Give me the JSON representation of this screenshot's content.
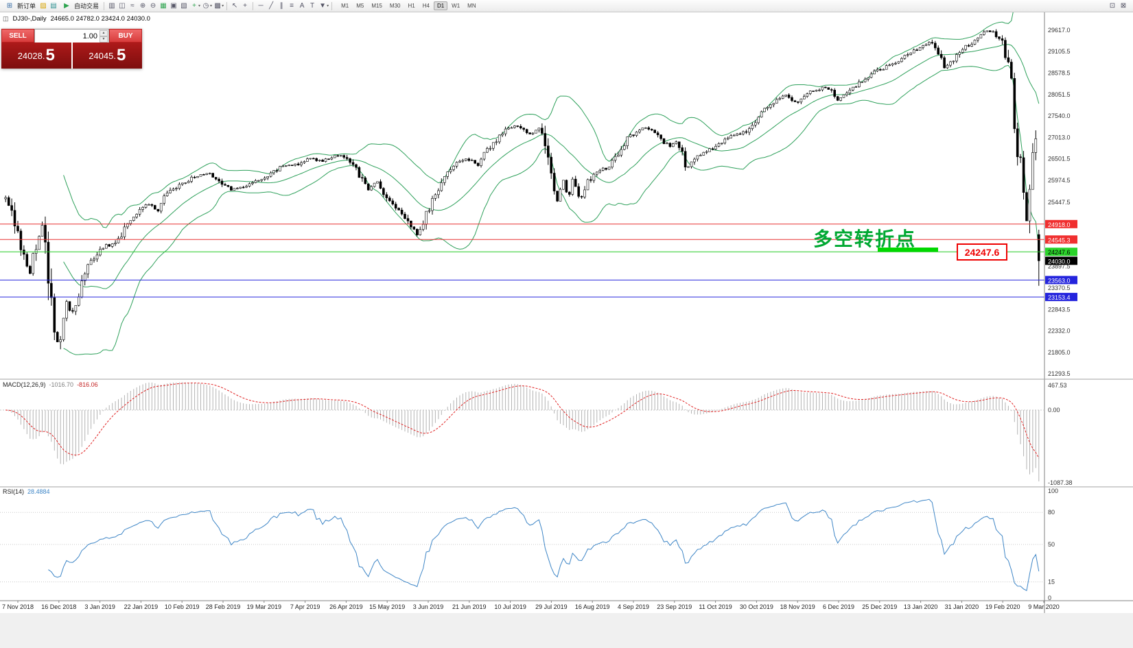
{
  "window": {
    "symbol_period": "DJ30-,Daily",
    "ohlc_text": "24665.0 24782.0 23424.0 24030.0"
  },
  "toolbar": {
    "new_order_label": "新订单",
    "auto_trading_label": "自动交易",
    "timeframes": [
      "M1",
      "M5",
      "M15",
      "M30",
      "H1",
      "H4",
      "D1",
      "W1",
      "MN"
    ],
    "active_timeframe": "D1"
  },
  "icons": {
    "new_order": "⊞",
    "brush": "▨",
    "layouts": "▤",
    "auto_trading": "▶",
    "chart_bars": "▥",
    "chart_candles": "◫",
    "chart_line": "≈",
    "zoom_in": "⊕",
    "zoom_out": "⊖",
    "tile_windows": "▦",
    "cascade": "▣",
    "arrange": "▧",
    "add_indicator": "+",
    "periods": "◷",
    "templates": "▩",
    "cursor": "↖",
    "crosshair": "+",
    "hline": "─",
    "trendline": "╱",
    "channel": "∥",
    "fibonacci": "≡",
    "text": "A",
    "label": "T",
    "shapes": "▼",
    "caret": "▾",
    "spin_up": "▲",
    "spin_down": "▼",
    "window_a": "⊡",
    "window_b": "⊠"
  },
  "trade_panel": {
    "sell_label": "SELL",
    "buy_label": "BUY",
    "volume": "1.00",
    "sell_price_int": "24028.",
    "sell_price_big": "5",
    "buy_price_int": "24045.",
    "buy_price_big": "5"
  },
  "chart_data": {
    "type": "candlestick",
    "symbol": "DJ30-",
    "timeframe": "Daily",
    "ohlc": {
      "open": 24665.0,
      "high": 24782.0,
      "low": 23424.0,
      "close": 24030.0
    },
    "annotation": {
      "text": "多空转折点",
      "price_label": "24247.6"
    },
    "styles": {
      "bollinger": "#2da05a",
      "up_candle": "#ffffff",
      "down_candle": "#000000",
      "macd_hist": "#b2b2b2",
      "macd_signal": "#e02020",
      "rsi_line": "#3d85c6"
    },
    "hlines": [
      {
        "price": 24918.0,
        "color": "#e83030"
      },
      {
        "price": 24545.3,
        "color": "#e83030"
      },
      {
        "price": 24247.6,
        "color": "#22cc22"
      },
      {
        "price": 23563.0,
        "color": "#2828dd"
      },
      {
        "price": 23153.4,
        "color": "#2828dd"
      }
    ],
    "y_axis": {
      "scale_labels": [
        {
          "text": "29617.0",
          "price": 29617.0
        },
        {
          "text": "29105.5",
          "price": 29105.5
        },
        {
          "text": "28578.5",
          "price": 28578.5
        },
        {
          "text": "28051.5",
          "price": 28051.5
        },
        {
          "text": "27540.0",
          "price": 27540.0
        },
        {
          "text": "27013.0",
          "price": 27013.0
        },
        {
          "text": "26501.5",
          "price": 26501.5
        },
        {
          "text": "25974.5",
          "price": 25974.5
        },
        {
          "text": "25447.5",
          "price": 25447.5
        },
        {
          "text": "23897.5",
          "price": 23897.5
        },
        {
          "text": "23370.5",
          "price": 23370.5
        },
        {
          "text": "22843.5",
          "price": 22843.5
        },
        {
          "text": "22332.0",
          "price": 22332.0
        },
        {
          "text": "21805.0",
          "price": 21805.0
        },
        {
          "text": "21293.5",
          "price": 21293.5
        }
      ],
      "badges": [
        {
          "text": "24918.0",
          "price": 24918.0,
          "bg": "#f02f2f",
          "fg": "#ffffff"
        },
        {
          "text": "24545.3",
          "price": 24545.3,
          "bg": "#f02f2f",
          "fg": "#ffffff"
        },
        {
          "text": "24247.6",
          "price": 24247.6,
          "bg": "#2bd42b",
          "fg": "#000000"
        },
        {
          "text": "24030.0",
          "price": 24030.0,
          "bg": "#000000",
          "fg": "#ffffff"
        },
        {
          "text": "23563.0",
          "price": 23563.0,
          "bg": "#2424dd",
          "fg": "#ffffff"
        },
        {
          "text": "23153.4",
          "price": 23153.4,
          "bg": "#2424dd",
          "fg": "#ffffff"
        }
      ]
    },
    "x_labels": [
      "7 Nov 2018",
      "16 Dec 2018",
      "3 Jan 2019",
      "22 Jan 2019",
      "10 Feb 2019",
      "28 Feb 2019",
      "19 Mar 2019",
      "7 Apr 2019",
      "26 Apr 2019",
      "15 May 2019",
      "3 Jun 2019",
      "21 Jun 2019",
      "10 Jul 2019",
      "29 Jul 2019",
      "16 Aug 2019",
      "4 Sep 2019",
      "23 Sep 2019",
      "11 Oct 2019",
      "30 Oct 2019",
      "18 Nov 2019",
      "6 Dec 2019",
      "25 Dec 2019",
      "13 Jan 2020",
      "31 Jan 2020",
      "19 Feb 2020",
      "9 Mar 2020"
    ],
    "indicators": {
      "macd": {
        "name": "MACD(12,26,9)",
        "main": "-1016.70",
        "signal": "-816.06",
        "axis": [
          "467.53",
          "0.00",
          "-1087.38"
        ],
        "fast": 12,
        "slow": 26,
        "smoothing": 9
      },
      "rsi": {
        "name": "RSI(14)",
        "value": "28.4884",
        "period": 14,
        "axis": [
          "100",
          "80",
          "50",
          "15",
          "0"
        ],
        "levels": [
          80,
          50,
          15
        ]
      }
    },
    "bollinger": {
      "period": 20,
      "deviation": 2
    },
    "price_path_anchors": [
      [
        0,
        25700
      ],
      [
        0.01,
        25300
      ],
      [
        0.02,
        24300
      ],
      [
        0.028,
        23700
      ],
      [
        0.034,
        24400
      ],
      [
        0.041,
        24900
      ],
      [
        0.046,
        23900
      ],
      [
        0.051,
        22600
      ],
      [
        0.057,
        21750
      ],
      [
        0.062,
        23100
      ],
      [
        0.069,
        22700
      ],
      [
        0.076,
        23300
      ],
      [
        0.085,
        23900
      ],
      [
        0.099,
        24350
      ],
      [
        0.112,
        24500
      ],
      [
        0.122,
        24950
      ],
      [
        0.131,
        25150
      ],
      [
        0.141,
        25400
      ],
      [
        0.151,
        25250
      ],
      [
        0.161,
        25700
      ],
      [
        0.171,
        25850
      ],
      [
        0.181,
        26000
      ],
      [
        0.191,
        26100
      ],
      [
        0.2,
        26150
      ],
      [
        0.21,
        26000
      ],
      [
        0.22,
        25750
      ],
      [
        0.23,
        25800
      ],
      [
        0.244,
        25950
      ],
      [
        0.256,
        26100
      ],
      [
        0.269,
        26300
      ],
      [
        0.283,
        26350
      ],
      [
        0.296,
        26500
      ],
      [
        0.309,
        26450
      ],
      [
        0.322,
        26600
      ],
      [
        0.332,
        26500
      ],
      [
        0.342,
        26200
      ],
      [
        0.352,
        25750
      ],
      [
        0.361,
        25950
      ],
      [
        0.371,
        25550
      ],
      [
        0.381,
        25300
      ],
      [
        0.391,
        24950
      ],
      [
        0.399,
        24650
      ],
      [
        0.407,
        25100
      ],
      [
        0.417,
        25650
      ],
      [
        0.427,
        26100
      ],
      [
        0.437,
        26400
      ],
      [
        0.447,
        26500
      ],
      [
        0.457,
        26350
      ],
      [
        0.466,
        26700
      ],
      [
        0.476,
        26950
      ],
      [
        0.486,
        27250
      ],
      [
        0.496,
        27300
      ],
      [
        0.506,
        27100
      ],
      [
        0.516,
        27250
      ],
      [
        0.522,
        26900
      ],
      [
        0.53,
        25750
      ],
      [
        0.534,
        25450
      ],
      [
        0.539,
        26000
      ],
      [
        0.544,
        25550
      ],
      [
        0.549,
        26100
      ],
      [
        0.555,
        25450
      ],
      [
        0.562,
        25900
      ],
      [
        0.572,
        26200
      ],
      [
        0.582,
        26300
      ],
      [
        0.591,
        26550
      ],
      [
        0.601,
        27000
      ],
      [
        0.611,
        27200
      ],
      [
        0.621,
        27250
      ],
      [
        0.631,
        27000
      ],
      [
        0.641,
        26800
      ],
      [
        0.649,
        26950
      ],
      [
        0.657,
        26250
      ],
      [
        0.665,
        26500
      ],
      [
        0.673,
        26650
      ],
      [
        0.683,
        26750
      ],
      [
        0.693,
        26950
      ],
      [
        0.703,
        27100
      ],
      [
        0.713,
        27150
      ],
      [
        0.723,
        27400
      ],
      [
        0.733,
        27700
      ],
      [
        0.742,
        27900
      ],
      [
        0.752,
        28050
      ],
      [
        0.762,
        27850
      ],
      [
        0.772,
        28100
      ],
      [
        0.782,
        28150
      ],
      [
        0.792,
        28250
      ],
      [
        0.802,
        27950
      ],
      [
        0.811,
        28050
      ],
      [
        0.821,
        28300
      ],
      [
        0.831,
        28500
      ],
      [
        0.841,
        28650
      ],
      [
        0.851,
        28750
      ],
      [
        0.861,
        28900
      ],
      [
        0.871,
        29050
      ],
      [
        0.88,
        29200
      ],
      [
        0.89,
        29350
      ],
      [
        0.897,
        29100
      ],
      [
        0.905,
        28700
      ],
      [
        0.913,
        28900
      ],
      [
        0.92,
        29150
      ],
      [
        0.93,
        29300
      ],
      [
        0.94,
        29550
      ],
      [
        0.948,
        29600
      ],
      [
        0.958,
        29400
      ],
      [
        0.965,
        28900
      ],
      [
        0.971,
        27600
      ],
      [
        0.978,
        26000
      ],
      [
        0.983,
        25000
      ],
      [
        0.988,
        26600
      ],
      [
        0.993,
        26900
      ],
      [
        0.996,
        25500
      ],
      [
        1,
        24030
      ]
    ]
  }
}
